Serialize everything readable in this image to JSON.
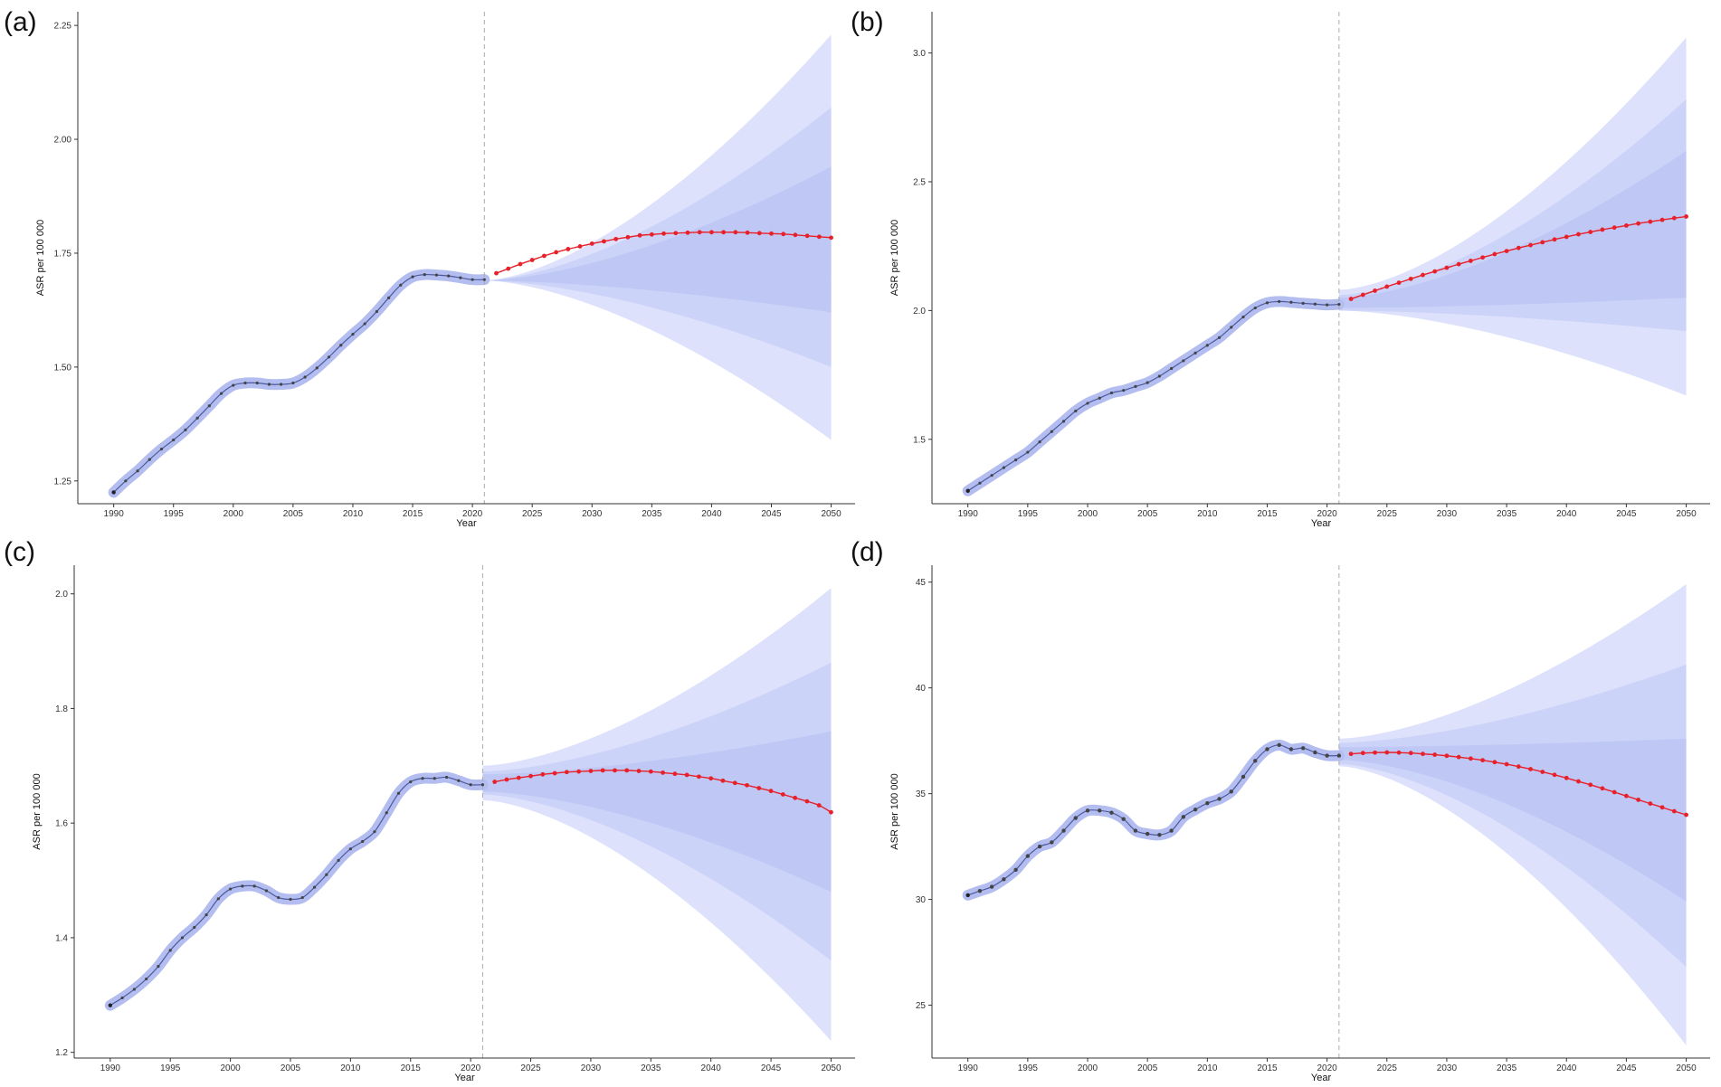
{
  "figure": {
    "colors": {
      "historical_band": "#b3bdf0",
      "historical_line": "#4c5a9e",
      "historical_point": "#444444",
      "forecast_line": "#e8202a",
      "forecast_band_outer": "#dde1fb",
      "forecast_band_mid": "#ccd3f8",
      "forecast_band_inner": "#bfc7f5",
      "vline": "#aaaaaa"
    }
  },
  "chart_data": [
    {
      "label": "(a)",
      "type": "line",
      "xlabel": "Year",
      "ylabel": "ASR per 100 000",
      "xlim": [
        1987,
        2052
      ],
      "ylim": [
        1.2,
        2.28
      ],
      "xticks": [
        1990,
        1995,
        2000,
        2005,
        2010,
        2015,
        2020,
        2025,
        2030,
        2035,
        2040,
        2045,
        2050
      ],
      "yticks": [
        1.25,
        1.5,
        1.75,
        2.0,
        2.25
      ],
      "ytick_labels": [
        "1.25",
        "1.50",
        "1.75",
        "2.00",
        "2.25"
      ],
      "forecast_start": 2021,
      "historical": {
        "years": [
          1990,
          1991,
          1992,
          1993,
          1994,
          1995,
          1996,
          1997,
          1998,
          1999,
          2000,
          2001,
          2002,
          2003,
          2004,
          2005,
          2006,
          2007,
          2008,
          2009,
          2010,
          2011,
          2012,
          2013,
          2014,
          2015,
          2016,
          2017,
          2018,
          2019,
          2020,
          2021
        ],
        "values": [
          1.225,
          1.25,
          1.272,
          1.297,
          1.32,
          1.34,
          1.362,
          1.388,
          1.415,
          1.442,
          1.46,
          1.465,
          1.465,
          1.462,
          1.462,
          1.465,
          1.478,
          1.498,
          1.522,
          1.548,
          1.572,
          1.595,
          1.622,
          1.652,
          1.68,
          1.698,
          1.703,
          1.702,
          1.7,
          1.696,
          1.692,
          1.692
        ]
      },
      "forecast": {
        "years": [
          2022,
          2023,
          2024,
          2025,
          2026,
          2027,
          2028,
          2029,
          2030,
          2031,
          2032,
          2033,
          2034,
          2035,
          2036,
          2037,
          2038,
          2039,
          2040,
          2041,
          2042,
          2043,
          2044,
          2045,
          2046,
          2047,
          2048,
          2049,
          2050
        ],
        "values": [
          1.706,
          1.716,
          1.726,
          1.735,
          1.744,
          1.752,
          1.759,
          1.765,
          1.771,
          1.776,
          1.781,
          1.785,
          1.789,
          1.791,
          1.793,
          1.794,
          1.795,
          1.796,
          1.796,
          1.796,
          1.796,
          1.795,
          1.794,
          1.793,
          1.792,
          1.79,
          1.788,
          1.786,
          1.784
        ]
      },
      "forecast_bands": [
        {
          "name": "outer",
          "start": [
            1.69,
            1.69
          ],
          "end": [
            1.34,
            2.23
          ]
        },
        {
          "name": "mid",
          "start": [
            1.69,
            1.69
          ],
          "end": [
            1.5,
            2.07
          ]
        },
        {
          "name": "inner",
          "start": [
            1.69,
            1.69
          ],
          "end": [
            1.62,
            1.94
          ]
        }
      ]
    },
    {
      "label": "(b)",
      "type": "line",
      "xlabel": "Year",
      "ylabel": "ASR per 100 000",
      "xlim": [
        1987,
        2052
      ],
      "ylim": [
        1.25,
        3.16
      ],
      "xticks": [
        1990,
        1995,
        2000,
        2005,
        2010,
        2015,
        2020,
        2025,
        2030,
        2035,
        2040,
        2045,
        2050
      ],
      "yticks": [
        1.5,
        2.0,
        2.5,
        3.0
      ],
      "ytick_labels": [
        "1.5",
        "2.0",
        "2.5",
        "3.0"
      ],
      "forecast_start": 2021,
      "historical": {
        "years": [
          1990,
          1991,
          1992,
          1993,
          1994,
          1995,
          1996,
          1997,
          1998,
          1999,
          2000,
          2001,
          2002,
          2003,
          2004,
          2005,
          2006,
          2007,
          2008,
          2009,
          2010,
          2011,
          2012,
          2013,
          2014,
          2015,
          2016,
          2017,
          2018,
          2019,
          2020,
          2021
        ],
        "values": [
          1.3,
          1.33,
          1.36,
          1.39,
          1.42,
          1.45,
          1.49,
          1.53,
          1.57,
          1.61,
          1.64,
          1.66,
          1.68,
          1.69,
          1.705,
          1.72,
          1.745,
          1.775,
          1.805,
          1.835,
          1.865,
          1.895,
          1.935,
          1.975,
          2.01,
          2.03,
          2.035,
          2.032,
          2.028,
          2.025,
          2.022,
          2.024
        ]
      },
      "forecast": {
        "years": [
          2022,
          2023,
          2024,
          2025,
          2026,
          2027,
          2028,
          2029,
          2030,
          2031,
          2032,
          2033,
          2034,
          2035,
          2036,
          2037,
          2038,
          2039,
          2040,
          2041,
          2042,
          2043,
          2044,
          2045,
          2046,
          2047,
          2048,
          2049,
          2050
        ],
        "values": [
          2.045,
          2.061,
          2.077,
          2.093,
          2.108,
          2.123,
          2.138,
          2.152,
          2.166,
          2.18,
          2.193,
          2.206,
          2.219,
          2.231,
          2.243,
          2.254,
          2.265,
          2.276,
          2.286,
          2.296,
          2.305,
          2.314,
          2.322,
          2.33,
          2.338,
          2.345,
          2.352,
          2.359,
          2.365
        ]
      },
      "forecast_bands": [
        {
          "name": "outer",
          "start": [
            2.0,
            2.08
          ],
          "end": [
            1.67,
            3.06
          ]
        },
        {
          "name": "mid",
          "start": [
            2.0,
            2.06
          ],
          "end": [
            1.92,
            2.82
          ]
        },
        {
          "name": "inner",
          "start": [
            2.01,
            2.05
          ],
          "end": [
            2.05,
            2.62
          ]
        }
      ]
    },
    {
      "label": "(c)",
      "type": "line",
      "xlabel": "Year",
      "ylabel": "ASR per 100 000",
      "xlim": [
        1987,
        2052
      ],
      "ylim": [
        1.19,
        2.05
      ],
      "xticks": [
        1990,
        1995,
        2000,
        2005,
        2010,
        2015,
        2020,
        2025,
        2030,
        2035,
        2040,
        2045,
        2050
      ],
      "yticks": [
        1.2,
        1.4,
        1.6,
        1.8,
        2.0
      ],
      "ytick_labels": [
        "1.2",
        "1.4",
        "1.6",
        "1.8",
        "2.0"
      ],
      "forecast_start": 2021,
      "historical": {
        "years": [
          1990,
          1991,
          1992,
          1993,
          1994,
          1995,
          1996,
          1997,
          1998,
          1999,
          2000,
          2001,
          2002,
          2003,
          2004,
          2005,
          2006,
          2007,
          2008,
          2009,
          2010,
          2011,
          2012,
          2013,
          2014,
          2015,
          2016,
          2017,
          2018,
          2019,
          2020,
          2021
        ],
        "values": [
          1.282,
          1.295,
          1.31,
          1.328,
          1.35,
          1.378,
          1.4,
          1.418,
          1.44,
          1.468,
          1.485,
          1.49,
          1.49,
          1.482,
          1.47,
          1.467,
          1.47,
          1.488,
          1.51,
          1.535,
          1.555,
          1.568,
          1.585,
          1.618,
          1.652,
          1.672,
          1.678,
          1.678,
          1.68,
          1.674,
          1.667,
          1.667
        ]
      },
      "forecast": {
        "years": [
          2022,
          2023,
          2024,
          2025,
          2026,
          2027,
          2028,
          2029,
          2030,
          2031,
          2032,
          2033,
          2034,
          2035,
          2036,
          2037,
          2038,
          2039,
          2040,
          2041,
          2042,
          2043,
          2044,
          2045,
          2046,
          2047,
          2048,
          2049,
          2050
        ],
        "values": [
          1.672,
          1.676,
          1.679,
          1.682,
          1.685,
          1.687,
          1.689,
          1.69,
          1.691,
          1.692,
          1.692,
          1.692,
          1.691,
          1.69,
          1.688,
          1.686,
          1.684,
          1.681,
          1.678,
          1.674,
          1.67,
          1.666,
          1.661,
          1.656,
          1.65,
          1.644,
          1.638,
          1.631,
          1.619
        ]
      },
      "forecast_bands": [
        {
          "name": "outer",
          "start": [
            1.64,
            1.7
          ],
          "end": [
            1.22,
            2.01
          ]
        },
        {
          "name": "mid",
          "start": [
            1.65,
            1.69
          ],
          "end": [
            1.36,
            1.88
          ]
        },
        {
          "name": "inner",
          "start": [
            1.655,
            1.685
          ],
          "end": [
            1.48,
            1.76
          ]
        }
      ]
    },
    {
      "label": "(d)",
      "type": "line",
      "xlabel": "Year",
      "ylabel": "ASR per 100 000",
      "xlim": [
        1987,
        2052
      ],
      "ylim": [
        22.5,
        45.8
      ],
      "xticks": [
        1990,
        1995,
        2000,
        2005,
        2010,
        2015,
        2020,
        2025,
        2030,
        2035,
        2040,
        2045,
        2050
      ],
      "yticks": [
        25,
        30,
        35,
        40,
        45
      ],
      "ytick_labels": [
        "25",
        "30",
        "35",
        "40",
        "45"
      ],
      "forecast_start": 2021,
      "historical": {
        "years": [
          1990,
          1991,
          1992,
          1993,
          1994,
          1995,
          1996,
          1997,
          1998,
          1999,
          2000,
          2001,
          2002,
          2003,
          2004,
          2005,
          2006,
          2007,
          2008,
          2009,
          2010,
          2011,
          2012,
          2013,
          2014,
          2015,
          2016,
          2017,
          2018,
          2019,
          2020,
          2021
        ],
        "values": [
          30.2,
          30.4,
          30.6,
          30.95,
          31.4,
          32.05,
          32.5,
          32.7,
          33.25,
          33.85,
          34.2,
          34.2,
          34.1,
          33.8,
          33.25,
          33.1,
          33.05,
          33.25,
          33.9,
          34.25,
          34.55,
          34.75,
          35.1,
          35.8,
          36.55,
          37.1,
          37.3,
          37.1,
          37.15,
          36.95,
          36.8,
          36.8
        ]
      },
      "forecast": {
        "years": [
          2022,
          2023,
          2024,
          2025,
          2026,
          2027,
          2028,
          2029,
          2030,
          2031,
          2032,
          2033,
          2034,
          2035,
          2036,
          2037,
          2038,
          2039,
          2040,
          2041,
          2042,
          2043,
          2044,
          2045,
          2046,
          2047,
          2048,
          2049,
          2050
        ],
        "values": [
          36.88,
          36.92,
          36.94,
          36.95,
          36.94,
          36.92,
          36.88,
          36.84,
          36.79,
          36.73,
          36.66,
          36.58,
          36.49,
          36.39,
          36.28,
          36.16,
          36.03,
          35.89,
          35.74,
          35.58,
          35.42,
          35.25,
          35.07,
          34.89,
          34.71,
          34.53,
          34.35,
          34.17,
          34.0
        ]
      },
      "forecast_bands": [
        {
          "name": "outer",
          "start": [
            36.3,
            37.6
          ],
          "end": [
            23.1,
            44.9
          ]
        },
        {
          "name": "mid",
          "start": [
            36.4,
            37.4
          ],
          "end": [
            26.8,
            41.1
          ]
        },
        {
          "name": "inner",
          "start": [
            36.6,
            37.2
          ],
          "end": [
            29.9,
            37.6
          ]
        }
      ]
    }
  ]
}
